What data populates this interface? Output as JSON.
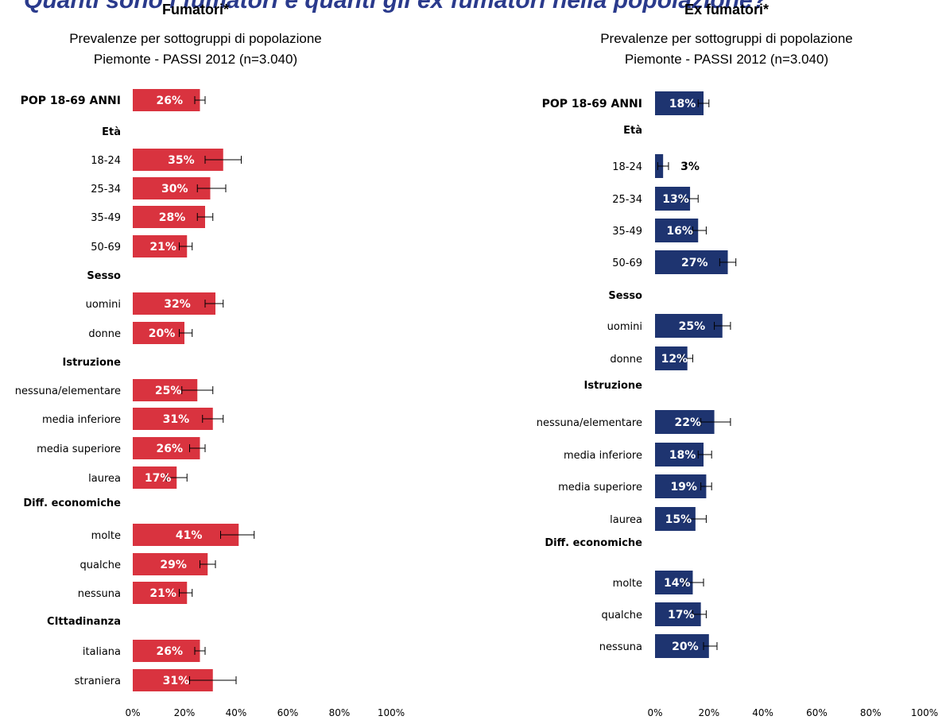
{
  "banner": "Quanti sono i fumatori e quanti gli ex fumatori nella popolazione?",
  "chart_data": [
    {
      "type": "bar",
      "orientation": "horizontal",
      "title": "Fumatori*",
      "subtitle": [
        "Prevalenze per sottogruppi di popolazione",
        "Piemonte - PASSI 2012 (n=3.040)"
      ],
      "color": "#d9333f",
      "xlim": [
        0,
        100
      ],
      "ticks": [
        "0%",
        "20%",
        "40%",
        "60%",
        "80%",
        "100%"
      ],
      "error_bars": true,
      "rows": [
        {
          "label": "POP 18-69 ANNI",
          "value": 26,
          "err_low": 24,
          "err_high": 28,
          "bold": true
        },
        {
          "header": "Età"
        },
        {
          "label": "18-24",
          "value": 35,
          "err_low": 28,
          "err_high": 42
        },
        {
          "label": "25-34",
          "value": 30,
          "err_low": 25,
          "err_high": 36
        },
        {
          "label": "35-49",
          "value": 28,
          "err_low": 25,
          "err_high": 31
        },
        {
          "label": "50-69",
          "value": 21,
          "err_low": 18,
          "err_high": 23
        },
        {
          "header": "Sesso"
        },
        {
          "label": "uomini",
          "value": 32,
          "err_low": 28,
          "err_high": 35
        },
        {
          "label": "donne",
          "value": 20,
          "err_low": 18,
          "err_high": 23
        },
        {
          "header": "Istruzione"
        },
        {
          "label": "nessuna/elementare",
          "value": 25,
          "err_low": 19,
          "err_high": 31
        },
        {
          "label": "media inferiore",
          "value": 31,
          "err_low": 27,
          "err_high": 35
        },
        {
          "label": "media superiore",
          "value": 26,
          "err_low": 22,
          "err_high": 28
        },
        {
          "label": "laurea",
          "value": 17,
          "err_low": 13,
          "err_high": 21
        },
        {
          "header": "Diff. economiche"
        },
        {
          "label": "molte",
          "value": 41,
          "err_low": 34,
          "err_high": 47
        },
        {
          "label": "qualche",
          "value": 29,
          "err_low": 26,
          "err_high": 32
        },
        {
          "label": "nessuna",
          "value": 21,
          "err_low": 18,
          "err_high": 23
        },
        {
          "header": "CIttadinanza"
        },
        {
          "label": "italiana",
          "value": 26,
          "err_low": 24,
          "err_high": 28
        },
        {
          "label": "straniera",
          "value": 31,
          "err_low": 22,
          "err_high": 40
        }
      ]
    },
    {
      "type": "bar",
      "orientation": "horizontal",
      "title": "Ex fumatori*",
      "subtitle": [
        "Prevalenze per sottogruppi di popolazione",
        "Piemonte - PASSI 2012 (n=3.040)"
      ],
      "color": "#1e3470",
      "xlim": [
        0,
        100
      ],
      "ticks": [
        "0%",
        "20%",
        "40%",
        "60%",
        "80%",
        "100%"
      ],
      "error_bars": true,
      "rows": [
        {
          "label": "POP 18-69 ANNI",
          "value": 18,
          "err_low": 16,
          "err_high": 20,
          "bold": true
        },
        {
          "header": "Età"
        },
        {
          "label": "18-24",
          "value": 3,
          "err_low": 1,
          "err_high": 5
        },
        {
          "label": "25-34",
          "value": 13,
          "err_low": 10,
          "err_high": 16
        },
        {
          "label": "35-49",
          "value": 16,
          "err_low": 14,
          "err_high": 19
        },
        {
          "label": "50-69",
          "value": 27,
          "err_low": 24,
          "err_high": 30
        },
        {
          "header": "Sesso"
        },
        {
          "label": "uomini",
          "value": 25,
          "err_low": 22,
          "err_high": 28
        },
        {
          "label": "donne",
          "value": 12,
          "err_low": 10,
          "err_high": 14
        },
        {
          "header": "Istruzione"
        },
        {
          "label": "nessuna/elementare",
          "value": 22,
          "err_low": 17,
          "err_high": 28
        },
        {
          "label": "media inferiore",
          "value": 18,
          "err_low": 16,
          "err_high": 21
        },
        {
          "label": "media superiore",
          "value": 19,
          "err_low": 17,
          "err_high": 21
        },
        {
          "label": "laurea",
          "value": 15,
          "err_low": 12,
          "err_high": 19
        },
        {
          "header": "Diff. economiche"
        },
        {
          "label": "molte",
          "value": 14,
          "err_low": 11,
          "err_high": 18
        },
        {
          "label": "qualche",
          "value": 17,
          "err_low": 14,
          "err_high": 19
        },
        {
          "label": "nessuna",
          "value": 20,
          "err_low": 18,
          "err_high": 23
        }
      ]
    }
  ]
}
